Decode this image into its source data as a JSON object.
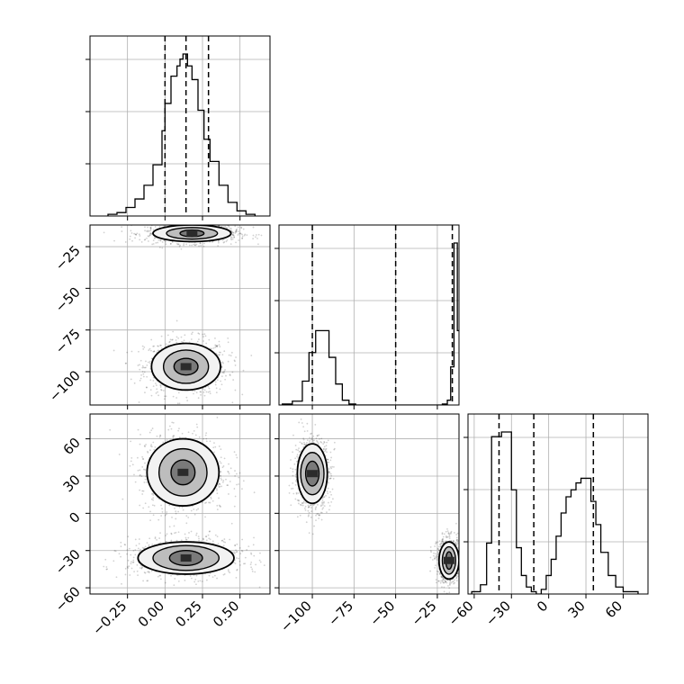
{
  "chart_data": {
    "type": "corner",
    "grid": true,
    "parameters": [
      {
        "id": "p1",
        "range": [
          -0.5,
          0.7
        ],
        "ticks": [
          -0.25,
          0.0,
          0.25,
          0.5
        ],
        "tick_labels": [
          "−0.25",
          "0.00",
          "0.25",
          "0.50"
        ],
        "quantiles": [
          0.0,
          0.14,
          0.29
        ]
      },
      {
        "id": "p2",
        "range": [
          -120,
          -12
        ],
        "ticks": [
          -100,
          -75,
          -50,
          -25
        ],
        "tick_labels": [
          "−100",
          "−75",
          "−50",
          "−25"
        ],
        "quantiles": [
          -100,
          -50,
          -16
        ]
      },
      {
        "id": "p3",
        "range": [
          -65,
          80
        ],
        "ticks": [
          -60,
          -30,
          0,
          30,
          60
        ],
        "tick_labels": [
          "−60",
          "−30",
          "0",
          "30",
          "60"
        ],
        "quantiles": [
          -40,
          -12,
          36
        ]
      }
    ],
    "histograms": {
      "p1": {
        "edges": [
          -0.38,
          -0.32,
          -0.26,
          -0.2,
          -0.14,
          -0.08,
          -0.02,
          0.0,
          0.04,
          0.08,
          0.1,
          0.12,
          0.15,
          0.18,
          0.22,
          0.26,
          0.3,
          0.36,
          0.42,
          0.48,
          0.54,
          0.6
        ],
        "counts": [
          1,
          2,
          5,
          10,
          18,
          30,
          50,
          66,
          82,
          88,
          92,
          95,
          88,
          80,
          62,
          45,
          32,
          18,
          8,
          3,
          1
        ]
      },
      "p2": {
        "edges": [
          -118,
          -112,
          -106,
          -102,
          -98,
          -94,
          -90,
          -86,
          -82,
          -78,
          -74,
          -70,
          -66,
          -62,
          -58,
          -54,
          -50,
          -46,
          -42,
          -38,
          -34,
          -30,
          -26,
          -22,
          -19,
          -17,
          -15,
          -13,
          -11
        ],
        "counts": [
          1,
          4,
          25,
          55,
          78,
          78,
          50,
          22,
          5,
          1,
          0,
          0,
          0,
          0,
          0,
          0,
          0,
          0,
          0,
          0,
          0,
          0,
          0,
          1,
          5,
          40,
          170,
          78
        ]
      },
      "p3": {
        "edges": [
          -62,
          -55,
          -50,
          -46,
          -42,
          -38,
          -34,
          -30,
          -26,
          -22,
          -18,
          -14,
          -10,
          -6,
          -2,
          2,
          6,
          10,
          14,
          18,
          22,
          26,
          30,
          34,
          38,
          42,
          48,
          54,
          60,
          66,
          72
        ],
        "counts": [
          1,
          4,
          22,
          68,
          68,
          70,
          70,
          45,
          20,
          8,
          3,
          1,
          0,
          2,
          8,
          15,
          25,
          35,
          42,
          45,
          48,
          50,
          50,
          40,
          30,
          18,
          8,
          3,
          1,
          1
        ]
      }
    },
    "contours": [
      {
        "panel": "p1-p2",
        "levels": [
          {
            "cx": 0.14,
            "cy": -97,
            "rx": [
              0.08,
              0.15,
              0.23
            ],
            "ry": [
              5,
              10,
              14
            ]
          },
          {
            "cx": 0.18,
            "cy": -17,
            "rx": [
              0.08,
              0.17,
              0.26
            ],
            "ry": [
              2,
              3.5,
              5
            ]
          }
        ]
      },
      {
        "panel": "p1-p3",
        "levels": [
          {
            "cx": 0.12,
            "cy": 33,
            "rx": [
              0.08,
              0.16,
              0.24
            ],
            "ry": [
              10,
              19,
              27
            ]
          },
          {
            "cx": 0.14,
            "cy": -36,
            "rx": [
              0.11,
              0.22,
              0.32
            ],
            "ry": [
              6,
              10,
              13
            ]
          }
        ]
      },
      {
        "panel": "p2-p3",
        "levels": [
          {
            "cx": -100,
            "cy": 32,
            "rx": [
              4,
              7,
              9
            ],
            "ry": [
              10,
              17,
              24
            ]
          },
          {
            "cx": -18,
            "cy": -38,
            "rx": [
              2,
              4,
              6
            ],
            "ry": [
              7,
              11,
              15
            ]
          }
        ]
      }
    ]
  }
}
